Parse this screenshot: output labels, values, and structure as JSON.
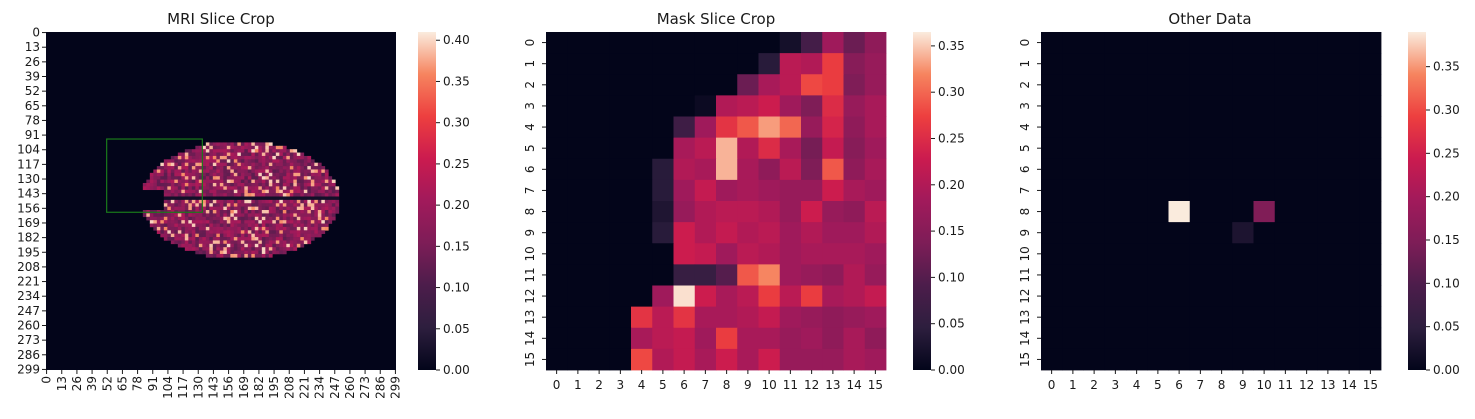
{
  "chart_data": [
    {
      "type": "heatmap",
      "title": "MRI Slice Crop",
      "xlabel": "",
      "ylabel": "",
      "tick_labels": [
        "0",
        "13",
        "26",
        "39",
        "52",
        "65",
        "78",
        "91",
        "104",
        "117",
        "130",
        "143",
        "156",
        "169",
        "182",
        "195",
        "208",
        "221",
        "234",
        "247",
        "260",
        "273",
        "286",
        "299"
      ],
      "grid_size": [
        300,
        300
      ],
      "colorbar": {
        "range": [
          0,
          0.41
        ],
        "ticks": [
          "0.00",
          "0.05",
          "0.10",
          "0.15",
          "0.20",
          "0.25",
          "0.30",
          "0.35",
          "0.40"
        ],
        "tick_values": [
          0,
          0.05,
          0.1,
          0.15,
          0.2,
          0.25,
          0.3,
          0.35,
          0.4
        ]
      },
      "brain_region": {
        "x_range": [
          80,
          250
        ],
        "y_range": [
          95,
          200
        ],
        "value_range": [
          0.12,
          0.4
        ]
      },
      "highlight_box": {
        "x_range": [
          52,
          134
        ],
        "y_range": [
          95,
          160
        ],
        "color": "#1a7a1a"
      }
    },
    {
      "type": "heatmap",
      "title": "Mask Slice Crop",
      "xlabel": "",
      "ylabel": "",
      "tick_labels": [
        "0",
        "1",
        "2",
        "3",
        "4",
        "5",
        "6",
        "7",
        "8",
        "9",
        "10",
        "11",
        "12",
        "13",
        "14",
        "15"
      ],
      "colorbar": {
        "range": [
          0,
          0.365
        ],
        "ticks": [
          "0.00",
          "0.05",
          "0.10",
          "0.15",
          "0.20",
          "0.25",
          "0.30",
          "0.35"
        ],
        "tick_values": [
          0,
          0.05,
          0.1,
          0.15,
          0.2,
          0.25,
          0.3,
          0.35
        ]
      },
      "values": [
        [
          0,
          0,
          0,
          0,
          0,
          0,
          0,
          0,
          0,
          0,
          0,
          0.02,
          0.08,
          0.18,
          0.12,
          0.16
        ],
        [
          0,
          0,
          0,
          0,
          0,
          0,
          0,
          0,
          0,
          0,
          0.04,
          0.21,
          0.2,
          0.27,
          0.15,
          0.17
        ],
        [
          0,
          0,
          0,
          0,
          0,
          0,
          0,
          0,
          0,
          0.12,
          0.19,
          0.21,
          0.28,
          0.27,
          0.14,
          0.17
        ],
        [
          0,
          0,
          0,
          0,
          0,
          0,
          0,
          0.01,
          0.2,
          0.21,
          0.23,
          0.18,
          0.14,
          0.25,
          0.17,
          0.19
        ],
        [
          0,
          0,
          0,
          0,
          0,
          0,
          0.07,
          0.18,
          0.26,
          0.29,
          0.33,
          0.3,
          0.17,
          0.24,
          0.16,
          0.19
        ],
        [
          0,
          0,
          0,
          0,
          0,
          0,
          0.19,
          0.21,
          0.34,
          0.2,
          0.25,
          0.19,
          0.13,
          0.22,
          0.15,
          0.18
        ],
        [
          0,
          0,
          0,
          0,
          0,
          0.04,
          0.2,
          0.19,
          0.34,
          0.19,
          0.16,
          0.21,
          0.14,
          0.29,
          0.16,
          0.19
        ],
        [
          0,
          0,
          0,
          0,
          0,
          0.04,
          0.18,
          0.22,
          0.18,
          0.19,
          0.18,
          0.17,
          0.17,
          0.23,
          0.19,
          0.18
        ],
        [
          0,
          0,
          0,
          0,
          0,
          0.03,
          0.17,
          0.2,
          0.21,
          0.21,
          0.2,
          0.17,
          0.23,
          0.17,
          0.16,
          0.21
        ],
        [
          0,
          0,
          0,
          0,
          0,
          0.04,
          0.23,
          0.2,
          0.22,
          0.2,
          0.21,
          0.18,
          0.2,
          0.18,
          0.18,
          0.2
        ],
        [
          0,
          0,
          0,
          0,
          0,
          0,
          0.23,
          0.22,
          0.18,
          0.21,
          0.2,
          0.18,
          0.19,
          0.19,
          0.19,
          0.18
        ],
        [
          0,
          0,
          0,
          0,
          0,
          0,
          0.06,
          0.06,
          0.1,
          0.29,
          0.32,
          0.18,
          0.17,
          0.16,
          0.2,
          0.17
        ],
        [
          0,
          0,
          0,
          0,
          0,
          0.18,
          0.36,
          0.23,
          0.19,
          0.21,
          0.27,
          0.21,
          0.27,
          0.19,
          0.2,
          0.22
        ],
        [
          0,
          0,
          0,
          0,
          0.26,
          0.21,
          0.26,
          0.19,
          0.19,
          0.2,
          0.22,
          0.18,
          0.17,
          0.16,
          0.17,
          0.18
        ],
        [
          0,
          0,
          0,
          0,
          0.19,
          0.21,
          0.22,
          0.18,
          0.27,
          0.19,
          0.19,
          0.17,
          0.18,
          0.16,
          0.19,
          0.16
        ],
        [
          0,
          0,
          0,
          0,
          0.28,
          0.2,
          0.22,
          0.19,
          0.23,
          0.19,
          0.23,
          0.17,
          0.17,
          0.17,
          0.19,
          0.18
        ]
      ]
    },
    {
      "type": "heatmap",
      "title": "Other Data",
      "xlabel": "",
      "ylabel": "",
      "tick_labels": [
        "0",
        "1",
        "2",
        "3",
        "4",
        "5",
        "6",
        "7",
        "8",
        "9",
        "10",
        "11",
        "12",
        "13",
        "14",
        "15"
      ],
      "colorbar": {
        "range": [
          0,
          0.39
        ],
        "ticks": [
          "0.00",
          "0.05",
          "0.10",
          "0.15",
          "0.20",
          "0.25",
          "0.30",
          "0.35"
        ],
        "tick_values": [
          0,
          0.05,
          0.1,
          0.15,
          0.2,
          0.25,
          0.3,
          0.35
        ]
      },
      "sparse_cells": [
        {
          "row": 8,
          "col": 6,
          "value": 0.39
        },
        {
          "row": 8,
          "col": 10,
          "value": 0.15
        },
        {
          "row": 9,
          "col": 9,
          "value": 0.03
        }
      ]
    }
  ]
}
